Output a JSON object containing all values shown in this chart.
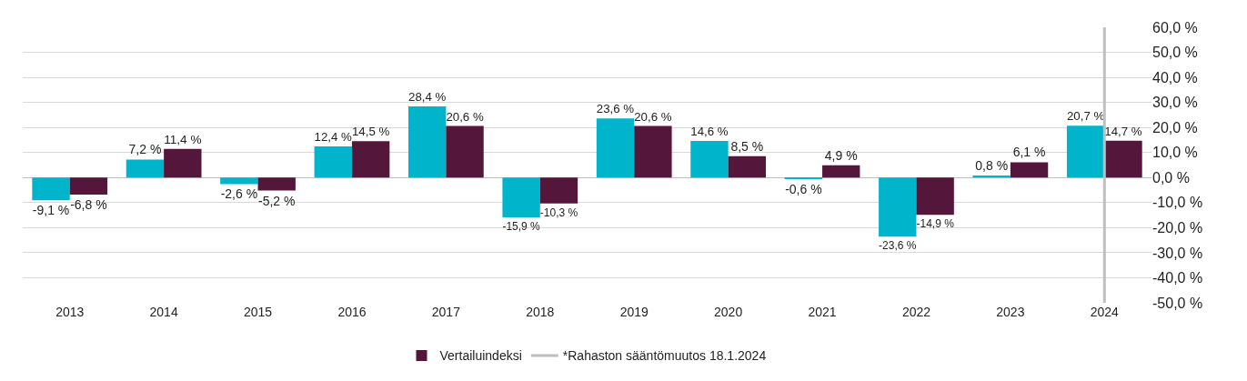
{
  "chart_data": {
    "type": "bar",
    "categories": [
      "2013",
      "2014",
      "2015",
      "2016",
      "2017",
      "2018",
      "2019",
      "2020",
      "2021",
      "2022",
      "2023",
      "2024"
    ],
    "series": [
      {
        "color": "#00b4cc",
        "values": [
          -9.1,
          7.2,
          -2.6,
          12.4,
          28.4,
          -15.9,
          23.6,
          14.6,
          -0.6,
          -23.6,
          0.8,
          20.7
        ],
        "value_labels": [
          "-9,1 %",
          "7,2 %",
          "-2,6 %",
          "12,4 %",
          "28,4 %",
          "-15,9 %",
          "23,6 %",
          "14,6 %",
          "-0,6 %",
          "-23,6 %",
          "0,8 %",
          "20,7 %"
        ]
      },
      {
        "name": "Vertailuindeksi",
        "color": "#55163b",
        "values": [
          -6.8,
          11.4,
          -5.2,
          14.5,
          20.6,
          -10.3,
          20.6,
          8.5,
          4.9,
          -14.9,
          6.1,
          14.7
        ],
        "value_labels": [
          "-6,8 %",
          "11,4 %",
          "-5,2 %",
          "14,5 %",
          "20,6 %",
          "-10,3 %",
          "20,6 %",
          "8,5 %",
          "4,9 %",
          "-14,9 %",
          "6,1 %",
          "14,7 %"
        ]
      }
    ],
    "ylim": [
      -50,
      60
    ],
    "yticks": [
      {
        "value": -50,
        "label": "-50,0 %"
      },
      {
        "value": -40,
        "label": "-40,0 %"
      },
      {
        "value": -30,
        "label": "-30,0 %"
      },
      {
        "value": -20,
        "label": "-20,0 %"
      },
      {
        "value": -10,
        "label": "-10,0 %"
      },
      {
        "value": 0,
        "label": "0,0 %"
      },
      {
        "value": 10,
        "label": "10,0 %"
      },
      {
        "value": 20,
        "label": "20,0 %"
      },
      {
        "value": 30,
        "label": "30,0 %"
      },
      {
        "value": 40,
        "label": "40,0 %"
      },
      {
        "value": 50,
        "label": "50,0 %"
      },
      {
        "value": 60,
        "label": "60,0 %"
      }
    ],
    "ref_lines": [
      {
        "axis": "x",
        "value": "2024",
        "label": "*Rahaston sääntömuutos 18.1.2024",
        "color": "#bfbfbf"
      }
    ],
    "grid": "y",
    "legend": "bottom"
  }
}
